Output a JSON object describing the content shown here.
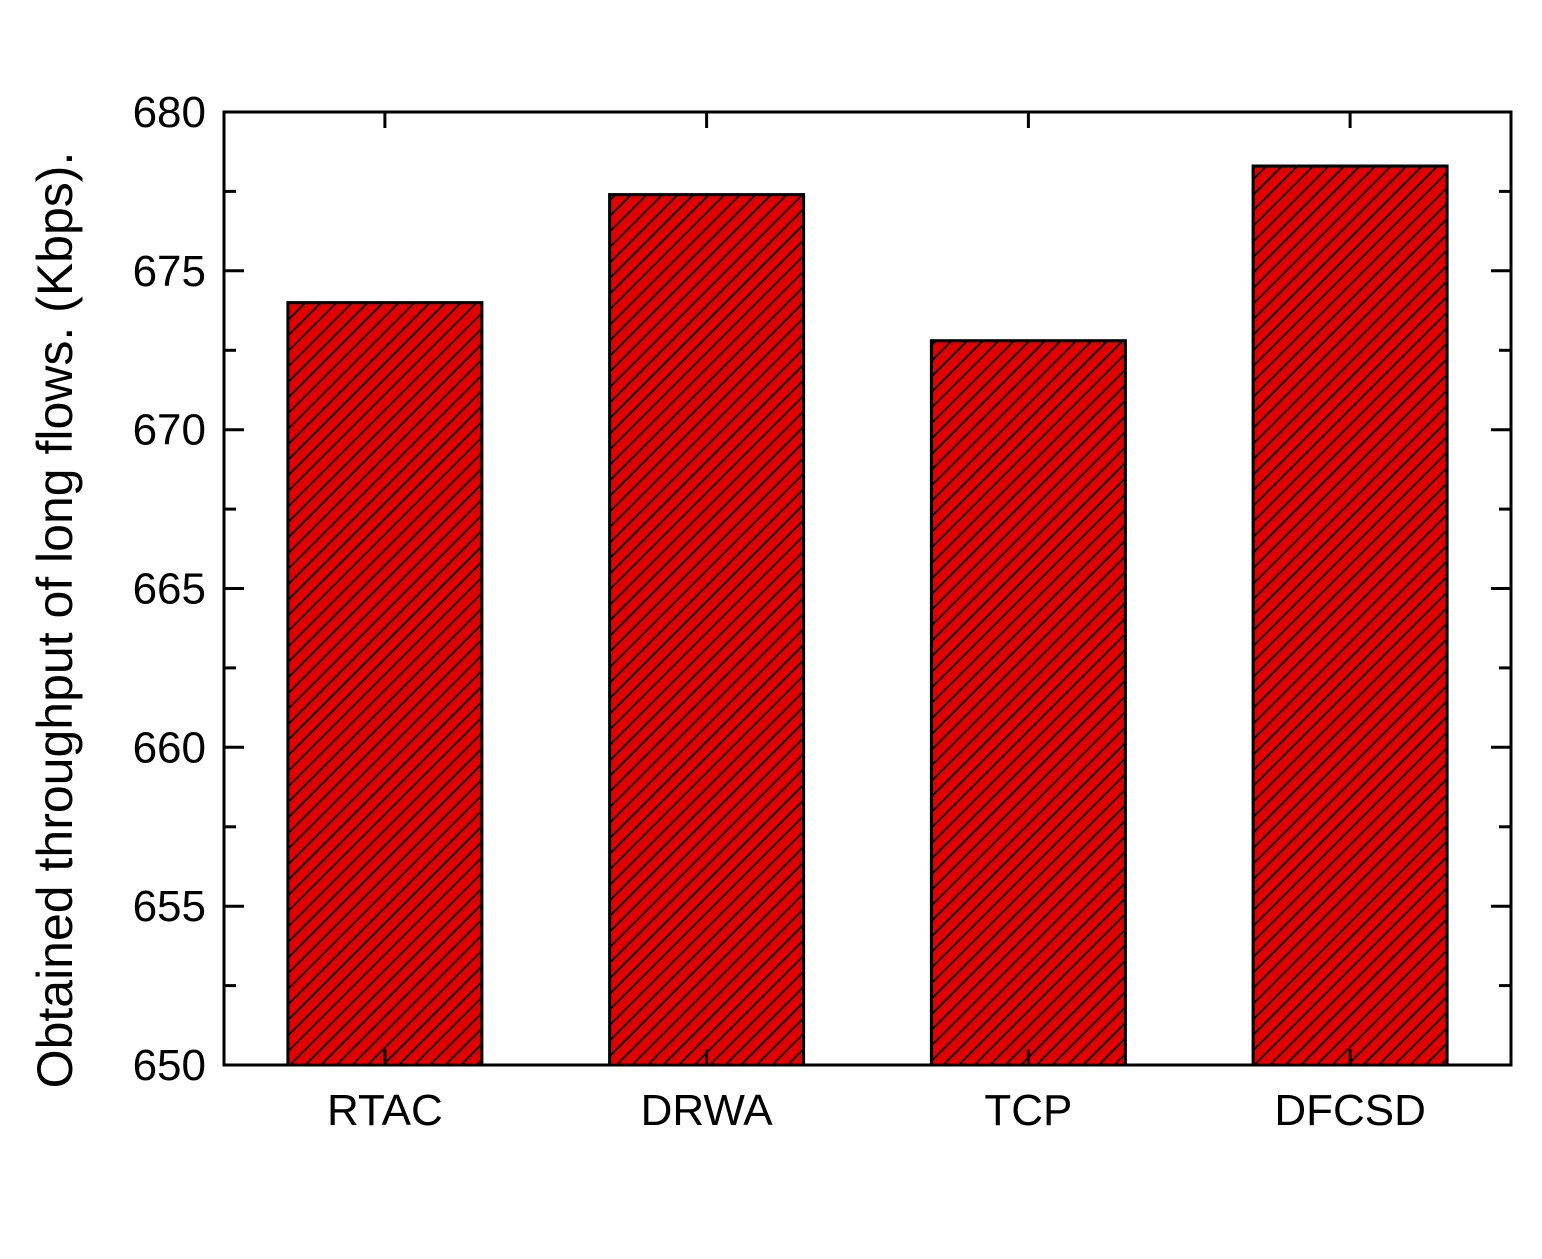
{
  "chart_data": {
    "type": "bar",
    "title": "",
    "xlabel": "",
    "ylabel": "Obtained throughput of long flows. (Kbps).",
    "categories": [
      "RTAC",
      "DRWA",
      "TCP",
      "DFCSD"
    ],
    "values": [
      674.0,
      677.4,
      672.8,
      678.3
    ],
    "ylim": [
      650,
      680
    ],
    "yticks": [
      650,
      655,
      660,
      665,
      670,
      675,
      680
    ],
    "yticks_minor": [
      652.5,
      657.5,
      662.5,
      667.5,
      672.5,
      677.5
    ],
    "ytick_labels": [
      "650",
      "655",
      "660",
      "665",
      "670",
      "675",
      "680"
    ],
    "grid": false,
    "legend": "none",
    "colors": {
      "bar_fill": "#e00000",
      "hatch": "#000000",
      "axis": "#000000"
    },
    "hatch_pattern": "diagonal-lines"
  }
}
